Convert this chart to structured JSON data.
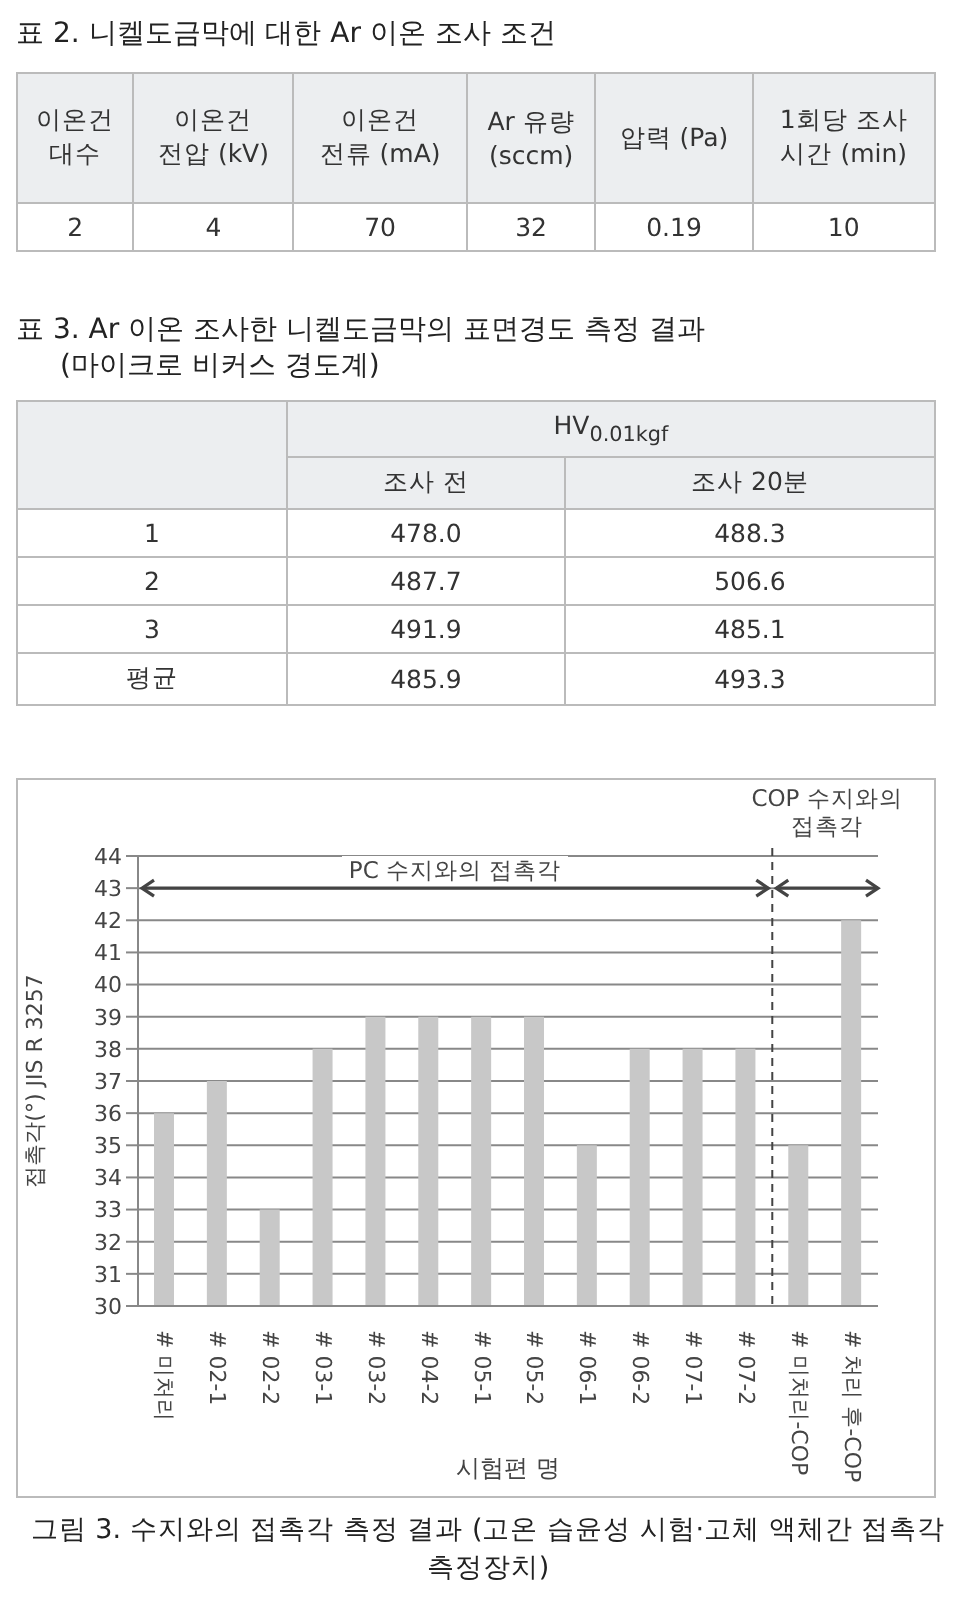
{
  "chart_data": [
    {
      "type": "other",
      "title": "표 2. 니켈도금막에 대한 Ar 이온 조사 조건",
      "annotations": [
        "이온건\n대수",
        "이온건\n전압 (kV)",
        "이온건\n전류 (mA)",
        "Ar 유량\n(sccm)",
        "압력 (Pa)",
        "1회당 조사\n시간 (min)",
        "2",
        "4",
        "70",
        "32",
        "0.19",
        "10"
      ]
    },
    {
      "type": "other",
      "title": "표 3. Ar 이온 조사한 니켈도금막의 표면경도 측정 결과",
      "subtitle": "(마이크로 비커스 경도계)",
      "annotations": [
        "HV$_{0.01kgf}$",
        "조사 전",
        "조사 20분",
        "1",
        "478.0",
        "488.3",
        "2",
        "487.7",
        "506.6",
        "3",
        "491.9",
        "485.1",
        "평균",
        "485.9",
        "493.3"
      ]
    },
    {
      "type": "bar",
      "title": "그림 3. 수지와의 접촉각 측정 결과 (고온 습윤성 시험·고체 액체간 접촉각 측정장치)",
      "xlabel": "시험편 명",
      "ylabel": "접촉각(°) JIS R 3257",
      "categories": [
        "# 미처리",
        "# 02-1",
        "# 02-2",
        "# 03-1",
        "# 03-2",
        "# 04-2",
        "# 05-1",
        "# 05-2",
        "# 06-1",
        "# 06-2",
        "# 07-1",
        "# 07-2",
        "# 미처리-COP",
        "# 처리 후-COP"
      ],
      "values": [
        36,
        37,
        33,
        38,
        39,
        39,
        39,
        39,
        35,
        38,
        38,
        38,
        35,
        42
      ],
      "color": "#c8c8c8",
      "ylim": [
        30,
        44
      ],
      "yticks": [
        30,
        31,
        32,
        33,
        34,
        35,
        36,
        37,
        38,
        39,
        40,
        41,
        42,
        43,
        44
      ],
      "grid": "y",
      "ref_lines": [
        {
          "axis": "x",
          "value": "# 07-2",
          "line_style": "dashed",
          "color": "#444444"
        }
      ],
      "annotations": [
        "PC 수지와의 접촉각",
        "COP 수지와의 접촉각"
      ]
    }
  ]
}
